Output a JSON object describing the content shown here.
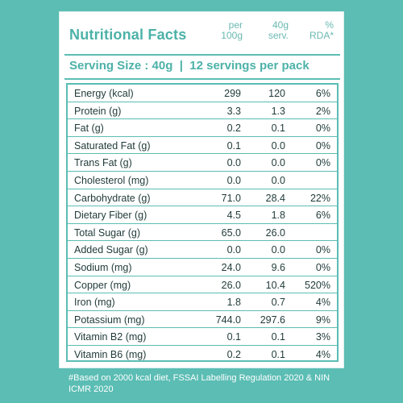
{
  "label": {
    "title": "Nutritional Facts",
    "columns": [
      "per\n100g",
      "40g\nserv.",
      "%\nRDA*"
    ],
    "serving": "Serving Size : 40g  |  12 servings per pack",
    "rows": [
      {
        "name": "Energy (kcal)",
        "per100": "299",
        "serv": "120",
        "rda": "6%"
      },
      {
        "name": "Protein (g)",
        "per100": "3.3",
        "serv": "1.3",
        "rda": "2%"
      },
      {
        "name": "Fat (g)",
        "per100": "0.2",
        "serv": "0.1",
        "rda": "0%"
      },
      {
        "name": "Saturated Fat (g)",
        "per100": "0.1",
        "serv": "0.0",
        "rda": "0%"
      },
      {
        "name": "Trans Fat (g)",
        "per100": "0.0",
        "serv": "0.0",
        "rda": "0%"
      },
      {
        "name": "Cholesterol (mg)",
        "per100": "0.0",
        "serv": "0.0",
        "rda": ""
      },
      {
        "name": "Carbohydrate (g)",
        "per100": "71.0",
        "serv": "28.4",
        "rda": "22%"
      },
      {
        "name": "Dietary Fiber (g)",
        "per100": "4.5",
        "serv": "1.8",
        "rda": "6%"
      },
      {
        "name": "Total Sugar (g)",
        "per100": "65.0",
        "serv": "26.0",
        "rda": ""
      },
      {
        "name": "Added Sugar (g)",
        "per100": "0.0",
        "serv": "0.0",
        "rda": "0%"
      },
      {
        "name": "Sodium (mg)",
        "per100": "24.0",
        "serv": "9.6",
        "rda": "0%"
      },
      {
        "name": "Copper (mg)",
        "per100": "26.0",
        "serv": "10.4",
        "rda": "520%"
      },
      {
        "name": "Iron (mg)",
        "per100": "1.8",
        "serv": "0.7",
        "rda": "4%"
      },
      {
        "name": "Potassium (mg)",
        "per100": "744.0",
        "serv": "297.6",
        "rda": "9%"
      },
      {
        "name": "Vitamin B2 (mg)",
        "per100": "0.1",
        "serv": "0.1",
        "rda": "3%"
      },
      {
        "name": "Vitamin B6 (mg)",
        "per100": "0.2",
        "serv": "0.1",
        "rda": "4%"
      }
    ],
    "footnote": "#Based on 2000 kcal diet, FSSAI Labelling Regulation 2020 & NIN ICMR 2020"
  },
  "colors": {
    "background": "#5bbdb4",
    "accent": "#4cb2a8"
  }
}
